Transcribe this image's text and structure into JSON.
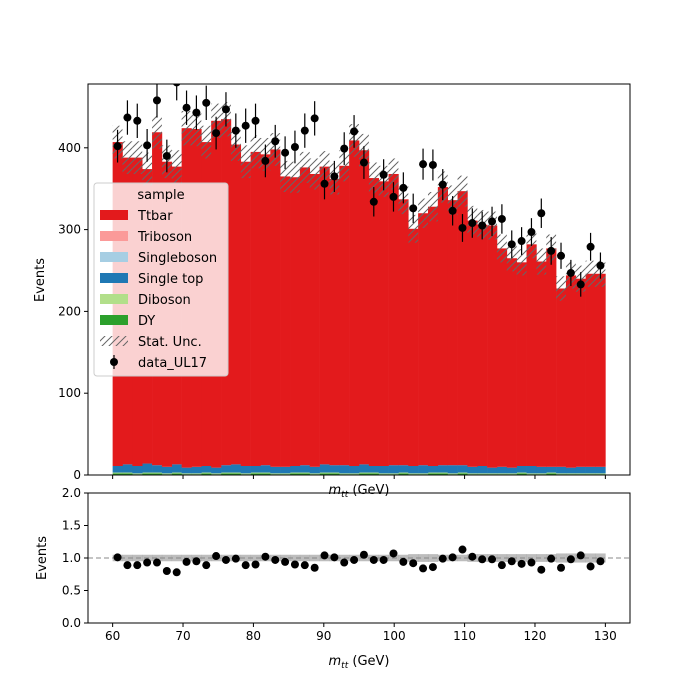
{
  "chart_data": [
    {
      "type": "bar",
      "stacked": true,
      "xlabel": "m_tt (GeV)",
      "ylabel": "Events",
      "xlim": [
        56.5,
        133.5
      ],
      "ylim": [
        0,
        478
      ],
      "xticks": [
        60,
        70,
        80,
        90,
        100,
        110,
        120,
        130
      ],
      "yticks": [
        0,
        100,
        200,
        300,
        400
      ],
      "bin_edges": [
        60.0,
        61.4,
        62.8,
        64.2,
        65.6,
        67.0,
        68.4,
        69.8,
        71.2,
        72.6,
        74.0,
        75.4,
        76.8,
        78.2,
        79.6,
        81.0,
        82.4,
        83.8,
        85.2,
        86.6,
        88.0,
        89.4,
        90.8,
        92.2,
        93.6,
        95.0,
        96.4,
        97.8,
        99.2,
        100.6,
        102.0,
        103.4,
        104.8,
        106.2,
        107.6,
        109.0,
        110.4,
        111.8,
        113.2,
        114.6,
        116.0,
        117.4,
        118.8,
        120.2,
        121.6,
        123.0,
        124.4,
        125.8,
        127.2,
        128.6,
        130.0
      ],
      "series": [
        {
          "name": "DY",
          "color": "#2ca02c",
          "values": [
            2,
            2,
            1,
            2,
            2,
            1,
            2,
            1,
            1,
            2,
            1,
            2,
            2,
            1,
            2,
            2,
            1,
            1,
            2,
            2,
            1,
            2,
            2,
            1,
            1,
            2,
            2,
            1,
            1,
            2,
            1,
            1,
            2,
            2,
            1,
            2,
            1,
            1,
            1,
            1,
            1,
            2,
            1,
            1,
            2,
            1,
            1,
            1,
            1,
            1
          ]
        },
        {
          "name": "Diboson",
          "color": "#b2df8a",
          "values": [
            1,
            1,
            1,
            1,
            1,
            1,
            1,
            1,
            1,
            1,
            1,
            1,
            1,
            1,
            1,
            1,
            1,
            1,
            1,
            1,
            1,
            1,
            1,
            1,
            1,
            1,
            1,
            1,
            1,
            1,
            1,
            1,
            1,
            1,
            1,
            1,
            1,
            1,
            1,
            1,
            1,
            1,
            1,
            1,
            1,
            1,
            1,
            1,
            1,
            1
          ]
        },
        {
          "name": "Single top",
          "color": "#1f78b4",
          "values": [
            8,
            10,
            9,
            11,
            9,
            8,
            10,
            7,
            8,
            8,
            7,
            9,
            10,
            9,
            8,
            9,
            8,
            8,
            8,
            9,
            8,
            10,
            9,
            10,
            9,
            10,
            8,
            9,
            10,
            9,
            9,
            10,
            8,
            9,
            10,
            9,
            8,
            9,
            7,
            8,
            7,
            8,
            9,
            8,
            7,
            8,
            7,
            8,
            8,
            8
          ]
        },
        {
          "name": "Singleboson",
          "color": "#a6cee3",
          "values": [
            0,
            0,
            0,
            0,
            0,
            0,
            0,
            0,
            0,
            0,
            0,
            0,
            0,
            0,
            0,
            0,
            0,
            0,
            0,
            0,
            0,
            0,
            0,
            0,
            0,
            0,
            0,
            0,
            0,
            0,
            0,
            0,
            0,
            0,
            0,
            0,
            0,
            0,
            0,
            0,
            0,
            0,
            0,
            0,
            0,
            0,
            0,
            0,
            0,
            0
          ]
        },
        {
          "name": "Triboson",
          "color": "#fb9a99",
          "values": [
            0,
            0,
            0,
            0,
            0,
            0,
            0,
            0,
            0,
            0,
            0,
            0,
            0,
            0,
            0,
            0,
            0,
            0,
            0,
            0,
            0,
            0,
            0,
            0,
            0,
            0,
            0,
            0,
            0,
            0,
            0,
            0,
            0,
            0,
            0,
            0,
            0,
            0,
            0,
            0,
            0,
            0,
            0,
            0,
            0,
            0,
            0,
            0,
            0,
            0
          ]
        },
        {
          "name": "Ttbar",
          "color": "#e31a1c",
          "values": [
            396,
            375,
            377,
            360,
            407,
            373,
            364,
            415,
            413,
            396,
            424,
            423,
            391,
            372,
            384,
            380,
            388,
            355,
            353,
            364,
            358,
            364,
            350,
            366,
            398,
            384,
            352,
            348,
            356,
            325,
            290,
            308,
            317,
            340,
            324,
            335,
            301,
            295,
            296,
            267,
            256,
            249,
            271,
            251,
            267,
            218,
            235,
            230,
            236,
            236
          ]
        }
      ],
      "totals": [
        407,
        388,
        388,
        374,
        419,
        383,
        377,
        424,
        423,
        407,
        433,
        435,
        404,
        383,
        395,
        392,
        398,
        365,
        364,
        376,
        368,
        377,
        362,
        378,
        409,
        397,
        363,
        359,
        368,
        337,
        301,
        320,
        328,
        352,
        336,
        347,
        311,
        306,
        305,
        277,
        265,
        260,
        282,
        261,
        277,
        228,
        244,
        240,
        246,
        246
      ],
      "stat_unc": [
        20,
        20,
        20,
        20,
        20,
        20,
        20,
        21,
        21,
        20,
        21,
        21,
        20,
        20,
        20,
        20,
        20,
        19,
        19,
        19,
        19,
        19,
        19,
        19,
        20,
        20,
        19,
        19,
        19,
        18,
        17,
        18,
        18,
        19,
        18,
        19,
        18,
        18,
        17,
        17,
        16,
        16,
        17,
        16,
        17,
        15,
        16,
        16,
        16,
        16
      ],
      "data": {
        "name": "data_UL17",
        "color": "#000000",
        "values": [
          402,
          437,
          433,
          403,
          458,
          390,
          480,
          449,
          443,
          455,
          418,
          447,
          421,
          427,
          433,
          384,
          408,
          394,
          401,
          421,
          436,
          356,
          365,
          399,
          420,
          382,
          334,
          367,
          340,
          351,
          326,
          380,
          379,
          355,
          323,
          302,
          308,
          305,
          310,
          313,
          282,
          286,
          297,
          320,
          274,
          268,
          247,
          233,
          279,
          256
        ],
        "errors": [
          20,
          21,
          21,
          20,
          21,
          20,
          22,
          21,
          21,
          21,
          20,
          21,
          21,
          21,
          21,
          20,
          20,
          20,
          20,
          21,
          21,
          19,
          19,
          20,
          20,
          20,
          18,
          19,
          18,
          19,
          18,
          19,
          19,
          19,
          18,
          17,
          18,
          17,
          18,
          18,
          17,
          17,
          17,
          18,
          17,
          16,
          16,
          15,
          17,
          16
        ]
      },
      "legend": {
        "title": "sample",
        "placement": "center-left",
        "extra_entries": [
          "Stat. Unc."
        ]
      }
    },
    {
      "type": "scatter",
      "panel": "ratio",
      "xlabel": "m_tt (GeV)",
      "ylabel": "Events",
      "xlim": [
        56.5,
        133.5
      ],
      "ylim": [
        0.0,
        2.0
      ],
      "xticks": [
        60,
        70,
        80,
        90,
        100,
        110,
        120,
        130
      ],
      "yticks": [
        0.0,
        0.5,
        1.0,
        1.5,
        2.0
      ],
      "ref_line": 1.0,
      "values": [
        1.01,
        0.89,
        0.89,
        0.93,
        0.93,
        0.8,
        0.78,
        0.94,
        0.95,
        0.89,
        1.03,
        0.97,
        0.99,
        0.89,
        0.9,
        1.02,
        0.97,
        0.94,
        0.9,
        0.89,
        0.85,
        1.04,
        1.01,
        0.93,
        0.97,
        1.05,
        0.97,
        0.97,
        1.07,
        0.94,
        0.92,
        0.84,
        0.86,
        0.99,
        1.01,
        1.13,
        1.02,
        0.98,
        0.98,
        0.89,
        0.95,
        0.91,
        0.93,
        0.82,
        0.99,
        0.85,
        0.98,
        1.04,
        0.87,
        0.95
      ],
      "unc_band": [
        0.05,
        0.05,
        0.05,
        0.05,
        0.05,
        0.05,
        0.05,
        0.05,
        0.05,
        0.05,
        0.05,
        0.05,
        0.05,
        0.05,
        0.05,
        0.05,
        0.05,
        0.05,
        0.05,
        0.05,
        0.05,
        0.05,
        0.05,
        0.05,
        0.05,
        0.05,
        0.05,
        0.05,
        0.05,
        0.05,
        0.06,
        0.06,
        0.06,
        0.05,
        0.05,
        0.05,
        0.06,
        0.06,
        0.06,
        0.06,
        0.06,
        0.06,
        0.06,
        0.06,
        0.06,
        0.07,
        0.07,
        0.07,
        0.07,
        0.07
      ]
    }
  ]
}
